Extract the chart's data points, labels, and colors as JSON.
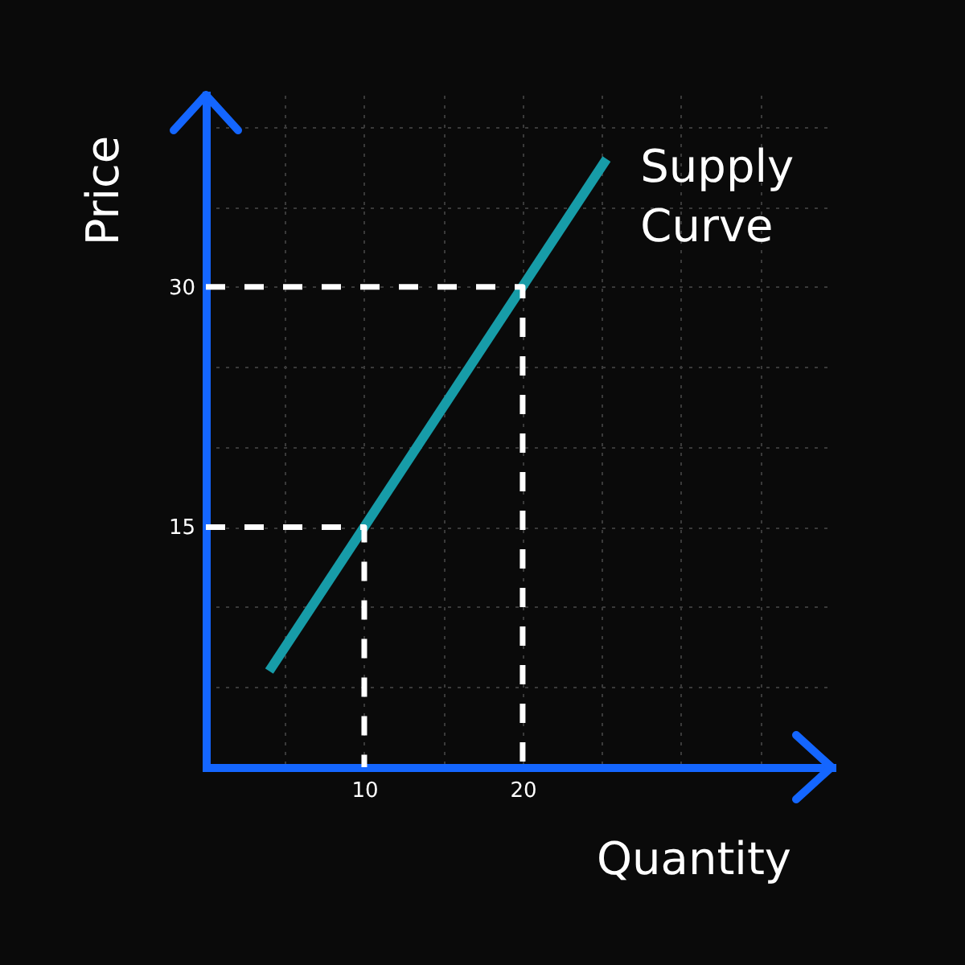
{
  "chart_data": {
    "type": "line",
    "xlabel": "Quantity",
    "ylabel": "Price",
    "xlim": [
      0,
      39.5
    ],
    "ylim": [
      0,
      42
    ],
    "xticks": [
      {
        "value": 5,
        "label": null
      },
      10,
      {
        "value": 15,
        "label": null
      },
      20,
      {
        "value": 25,
        "label": null
      },
      {
        "value": 30,
        "label": null
      },
      {
        "value": 35,
        "label": null
      }
    ],
    "yticks": [
      {
        "value": 5,
        "label": null
      },
      {
        "value": 10,
        "label": null
      },
      15,
      {
        "value": 20,
        "label": null
      },
      {
        "value": 25,
        "label": null
      },
      30,
      {
        "value": 35,
        "label": null
      },
      {
        "value": 40,
        "label": null
      }
    ],
    "grid": true,
    "series": [
      {
        "name": "Supply Curve",
        "color": "#179ca8",
        "x": [
          4,
          25.3
        ],
        "values": [
          6,
          38
        ]
      },
      {
        "color": "#ffffff",
        "line_style": "dashed",
        "x": [
          0,
          10,
          10
        ],
        "values": [
          15,
          15,
          0
        ]
      },
      {
        "color": "#ffffff",
        "line_style": "dashed",
        "x": [
          0,
          20,
          20
        ],
        "values": [
          30,
          30,
          0
        ]
      }
    ]
  }
}
